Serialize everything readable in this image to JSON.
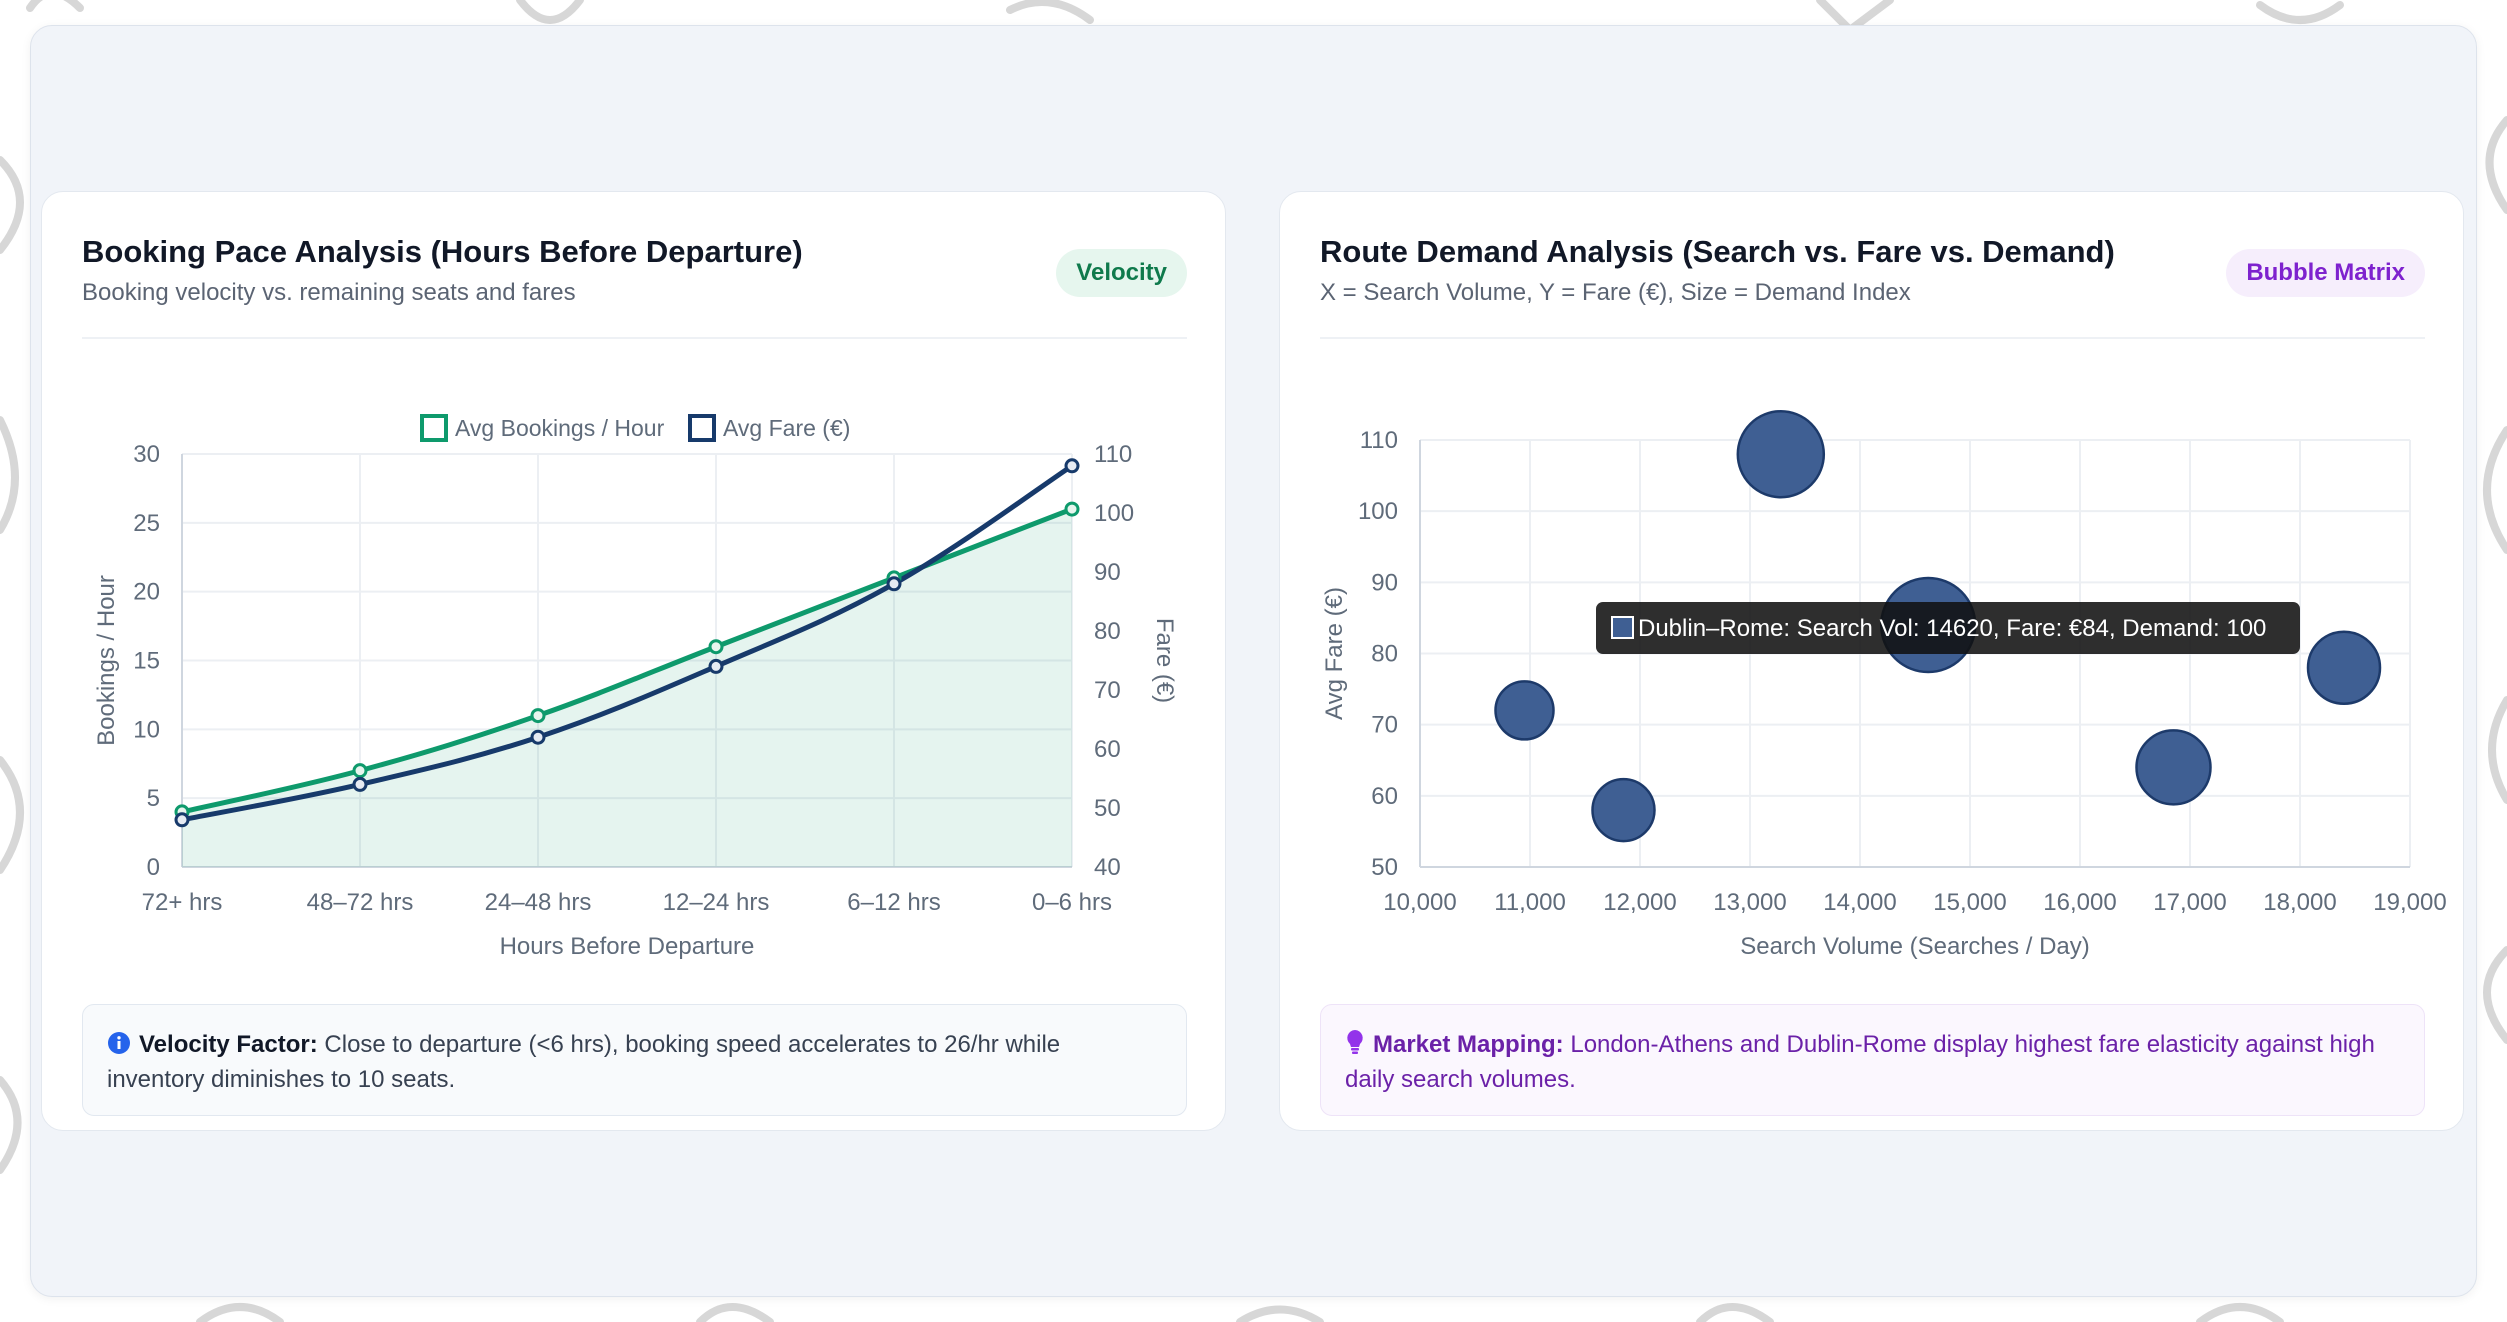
{
  "colors": {
    "bookings": "#0e9a6c",
    "fare": "#173a6b",
    "bubble_fill": "#3f5f93",
    "bubble_stroke": "#1d3a6a",
    "grid": "#eceff3",
    "axis_text": "#5f6b7a"
  },
  "left_card": {
    "title": "Booking Pace Analysis (Hours Before Departure)",
    "subtitle": "Booking velocity vs. remaining seats and fares",
    "badge": "Velocity",
    "note_icon": "info-icon",
    "note_label": "Velocity Factor:",
    "note_text": " Close to departure (<6 hrs), booking speed accelerates to 26/hr while inventory diminishes to 10 seats."
  },
  "right_card": {
    "title": "Route Demand Analysis (Search vs. Fare vs. Demand)",
    "subtitle": "X = Search Volume, Y = Fare (€), Size = Demand Index",
    "badge": "Bubble Matrix",
    "note_icon": "lightbulb-icon",
    "note_label": "Market Mapping:",
    "note_text": " London-Athens and Dublin-Rome display highest fare elasticity against high daily search volumes."
  },
  "chart_data": [
    {
      "type": "line",
      "categories": [
        "72+ hrs",
        "48–72 hrs",
        "24–48 hrs",
        "12–24 hrs",
        "6–12 hrs",
        "0–6 hrs"
      ],
      "series": [
        {
          "name": "Avg Bookings / Hour",
          "axis": "left",
          "values": [
            4,
            7,
            11,
            16,
            21,
            26
          ],
          "fill": true
        },
        {
          "name": "Avg Fare (€)",
          "axis": "right",
          "values": [
            48,
            54,
            62,
            74,
            88,
            108
          ]
        }
      ],
      "xlabel": "Hours Before Departure",
      "ylabel": "Bookings / Hour",
      "ylabel_right": "Fare (€)",
      "ylim": [
        0,
        30
      ],
      "yticks": [
        "0",
        "5",
        "10",
        "15",
        "20",
        "25",
        "30"
      ],
      "ylim_right": [
        40,
        110
      ],
      "yticks_right": [
        "40",
        "50",
        "60",
        "70",
        "80",
        "90",
        "100",
        "110"
      ],
      "legend": "top",
      "grid": true
    },
    {
      "type": "scatter",
      "subtype": "bubble",
      "points": [
        {
          "x": 10950,
          "y": 72,
          "r": 29
        },
        {
          "x": 11850,
          "y": 58,
          "r": 31
        },
        {
          "x": 13280,
          "y": 108,
          "r": 43
        },
        {
          "x": 14620,
          "y": 84,
          "r": 47
        },
        {
          "x": 16850,
          "y": 64,
          "r": 37
        },
        {
          "x": 18400,
          "y": 78,
          "r": 36
        }
      ],
      "xlabel": "Search Volume (Searches / Day)",
      "ylabel": "Avg Fare (€)",
      "xlim": [
        10000,
        19000
      ],
      "xticks": [
        "10,000",
        "11,000",
        "12,000",
        "13,000",
        "14,000",
        "15,000",
        "16,000",
        "17,000",
        "18,000",
        "19,000"
      ],
      "ylim": [
        50,
        110
      ],
      "yticks": [
        "50",
        "60",
        "70",
        "80",
        "90",
        "100",
        "110"
      ],
      "grid": true,
      "tooltip": "Dublin–Rome: Search Vol: 14620, Fare: €84, Demand: 100"
    }
  ]
}
